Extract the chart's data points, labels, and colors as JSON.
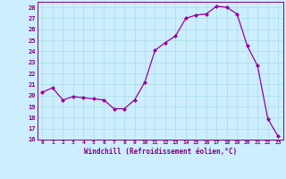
{
  "x": [
    0,
    1,
    2,
    3,
    4,
    5,
    6,
    7,
    8,
    9,
    10,
    11,
    12,
    13,
    14,
    15,
    16,
    17,
    18,
    19,
    20,
    21,
    22,
    23
  ],
  "y": [
    20.3,
    20.7,
    19.6,
    19.9,
    19.8,
    19.7,
    19.6,
    18.8,
    18.8,
    19.6,
    21.2,
    24.1,
    24.8,
    25.4,
    27.0,
    27.3,
    27.4,
    28.1,
    28.0,
    27.4,
    24.5,
    22.7,
    17.9,
    16.3
  ],
  "xlabel": "Windchill (Refroidissement éolien,°C)",
  "ylim": [
    16,
    28.5
  ],
  "xlim": [
    -0.5,
    23.5
  ],
  "yticks": [
    16,
    17,
    18,
    19,
    20,
    21,
    22,
    23,
    24,
    25,
    26,
    27,
    28
  ],
  "xticks": [
    0,
    1,
    2,
    3,
    4,
    5,
    6,
    7,
    8,
    9,
    10,
    11,
    12,
    13,
    14,
    15,
    16,
    17,
    18,
    19,
    20,
    21,
    22,
    23
  ],
  "line_color": "#990099",
  "marker_color": "#990099",
  "bg_color": "#cceeff",
  "grid_color": "#aadddd",
  "spine_color": "#800080",
  "font_color": "#800080"
}
